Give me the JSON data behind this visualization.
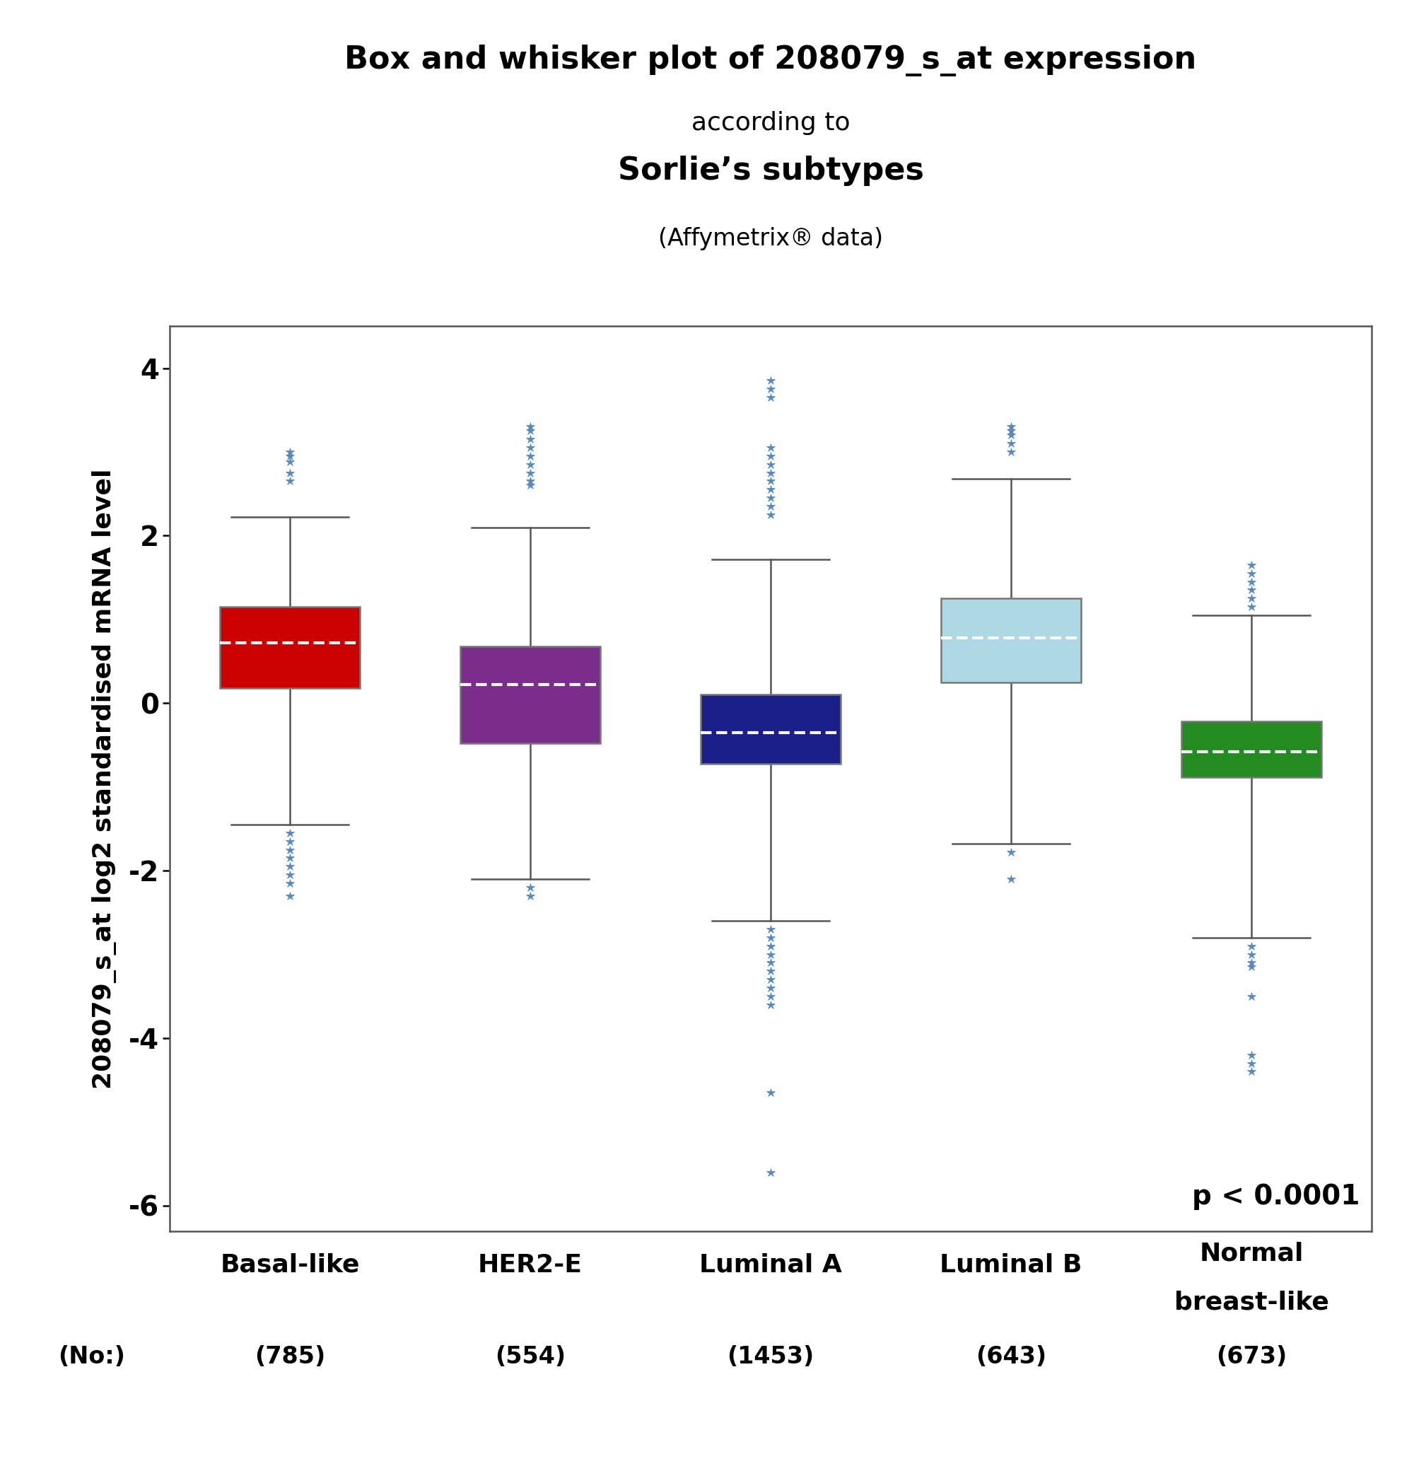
{
  "title_line1": "Box and whisker plot of 208079_s_at expression",
  "title_line2": "according to",
  "title_line3": "Sorlie’s subtypes",
  "title_line4": "(Affymetrix® data)",
  "ylabel": "208079_s_at log2 standardised mRNA level",
  "pvalue": "p < 0.0001",
  "categories": [
    "Basal-like",
    "HER2-E",
    "Luminal A",
    "Luminal B",
    "Normal\nbreast-like"
  ],
  "cat_keys": [
    "Basal-like",
    "HER2-E",
    "Luminal A",
    "Luminal B",
    "Normal breast-like"
  ],
  "sample_counts": [
    "(785)",
    "(554)",
    "(1453)",
    "(643)",
    "(673)"
  ],
  "no_label": "(No:)",
  "colors": [
    "#CC0000",
    "#7B2D8B",
    "#1B1F8A",
    "#ADD8E6",
    "#228B22"
  ],
  "box_data": {
    "Basal-like": {
      "q1": 0.18,
      "median": 0.72,
      "q3": 1.15,
      "whisker_low": -1.45,
      "whisker_high": 2.22,
      "outliers_low": [
        -1.55,
        -1.65,
        -1.75,
        -1.85,
        -1.95,
        -2.05,
        -2.15,
        -2.3
      ],
      "outliers_high": [
        2.65,
        2.75,
        2.88,
        2.95,
        3.0
      ]
    },
    "HER2-E": {
      "q1": -0.48,
      "median": 0.22,
      "q3": 0.68,
      "whisker_low": -2.1,
      "whisker_high": 2.1,
      "outliers_low": [
        -2.2,
        -2.3
      ],
      "outliers_high": [
        2.6,
        2.65,
        2.75,
        2.85,
        2.95,
        3.05,
        3.15,
        3.25,
        3.3
      ]
    },
    "Luminal A": {
      "q1": -0.72,
      "median": -0.35,
      "q3": 0.1,
      "whisker_low": -2.6,
      "whisker_high": 1.72,
      "outliers_low": [
        -2.7,
        -2.8,
        -2.9,
        -3.0,
        -3.1,
        -3.2,
        -3.3,
        -3.4,
        -3.5,
        -3.6,
        -4.65,
        -5.6
      ],
      "outliers_high": [
        2.25,
        2.35,
        2.45,
        2.55,
        2.65,
        2.75,
        2.85,
        2.95,
        3.05,
        3.65,
        3.75,
        3.85
      ]
    },
    "Luminal B": {
      "q1": 0.25,
      "median": 0.78,
      "q3": 1.25,
      "whisker_low": -1.68,
      "whisker_high": 2.68,
      "outliers_low": [
        -1.78,
        -2.1
      ],
      "outliers_high": [
        3.0,
        3.1,
        3.2,
        3.25,
        3.3
      ]
    },
    "Normal breast-like": {
      "q1": -0.88,
      "median": -0.58,
      "q3": -0.22,
      "whisker_low": -2.8,
      "whisker_high": 1.05,
      "outliers_low": [
        -2.9,
        -3.0,
        -3.1,
        -3.15,
        -3.5,
        -4.2,
        -4.3,
        -4.4
      ],
      "outliers_high": [
        1.15,
        1.25,
        1.35,
        1.45,
        1.55,
        1.65
      ]
    }
  },
  "ylim": [
    -6.3,
    4.5
  ],
  "yticks": [
    -6,
    -4,
    -2,
    0,
    2,
    4
  ],
  "background_color": "#FFFFFF",
  "plot_bg_color": "#FFFFFF",
  "border_color": "#777777",
  "outlier_color": "#5588BB",
  "whisker_color": "#555555"
}
